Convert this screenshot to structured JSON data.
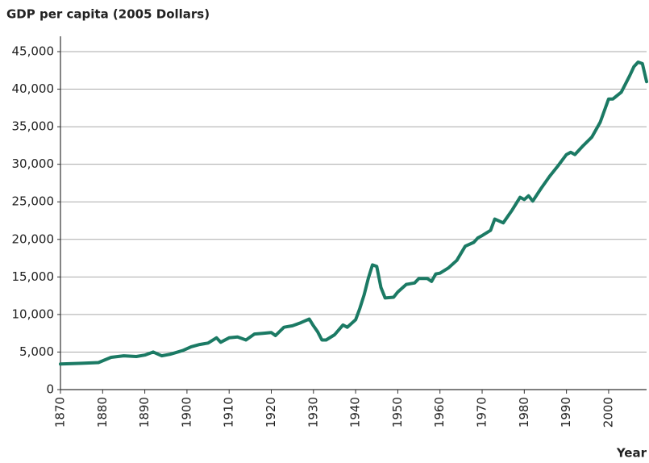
{
  "chart_data": {
    "type": "line",
    "title": "GDP per capita (2005 Dollars)",
    "xlabel": "Year",
    "color": "#1b7a64",
    "grid": true,
    "x": [
      1870,
      1875,
      1879,
      1882,
      1885,
      1888,
      1890,
      1892,
      1894,
      1896,
      1899,
      1901,
      1903,
      1905,
      1907,
      1908,
      1910,
      1912,
      1914,
      1916,
      1918,
      1920,
      1921,
      1923,
      1925,
      1927,
      1929,
      1930,
      1931,
      1932,
      1933,
      1935,
      1937,
      1938,
      1940,
      1941,
      1942,
      1943,
      1944,
      1945,
      1946,
      1947,
      1949,
      1950,
      1952,
      1954,
      1955,
      1957,
      1958,
      1959,
      1960,
      1962,
      1964,
      1966,
      1968,
      1969,
      1970,
      1972,
      1973,
      1975,
      1977,
      1979,
      1980,
      1981,
      1982,
      1984,
      1986,
      1988,
      1990,
      1991,
      1992,
      1994,
      1996,
      1998,
      2000,
      2001,
      2003,
      2005,
      2006,
      2007,
      2008,
      2009
    ],
    "values": [
      3400,
      3500,
      3600,
      4300,
      4500,
      4400,
      4600,
      5000,
      4500,
      4700,
      5200,
      5700,
      6000,
      6200,
      6900,
      6300,
      6900,
      7000,
      6600,
      7400,
      7500,
      7600,
      7200,
      8300,
      8500,
      8900,
      9400,
      8500,
      7700,
      6600,
      6600,
      7300,
      8600,
      8300,
      9300,
      10800,
      12600,
      14800,
      16600,
      16400,
      13600,
      12200,
      12300,
      13000,
      14000,
      14200,
      14800,
      14800,
      14400,
      15400,
      15500,
      16200,
      17200,
      19100,
      19600,
      20200,
      20500,
      21200,
      22700,
      22200,
      23800,
      25600,
      25300,
      25800,
      25100,
      26800,
      28400,
      29800,
      31300,
      31600,
      31300,
      32500,
      33600,
      35600,
      38700,
      38700,
      39600,
      41800,
      43000,
      43600,
      43400,
      41000
    ],
    "xlim": [
      1870,
      2009
    ],
    "xticks": [
      1870,
      1880,
      1890,
      1900,
      1910,
      1920,
      1930,
      1940,
      1950,
      1960,
      1970,
      1980,
      1990,
      2000
    ],
    "ylim": [
      0,
      45000
    ],
    "yticks": [
      0,
      {
        "value": 5000,
        "label": "5,000"
      },
      {
        "value": 10000,
        "label": "10,000"
      },
      {
        "value": 15000,
        "label": "15,000"
      },
      {
        "value": 20000,
        "label": "20,000"
      },
      {
        "value": 25000,
        "label": "25,000"
      },
      {
        "value": 30000,
        "label": "30,000"
      },
      {
        "value": 35000,
        "label": "35,000"
      },
      {
        "value": 40000,
        "label": "40,000"
      },
      {
        "value": 45000,
        "label": "45,000"
      }
    ]
  }
}
